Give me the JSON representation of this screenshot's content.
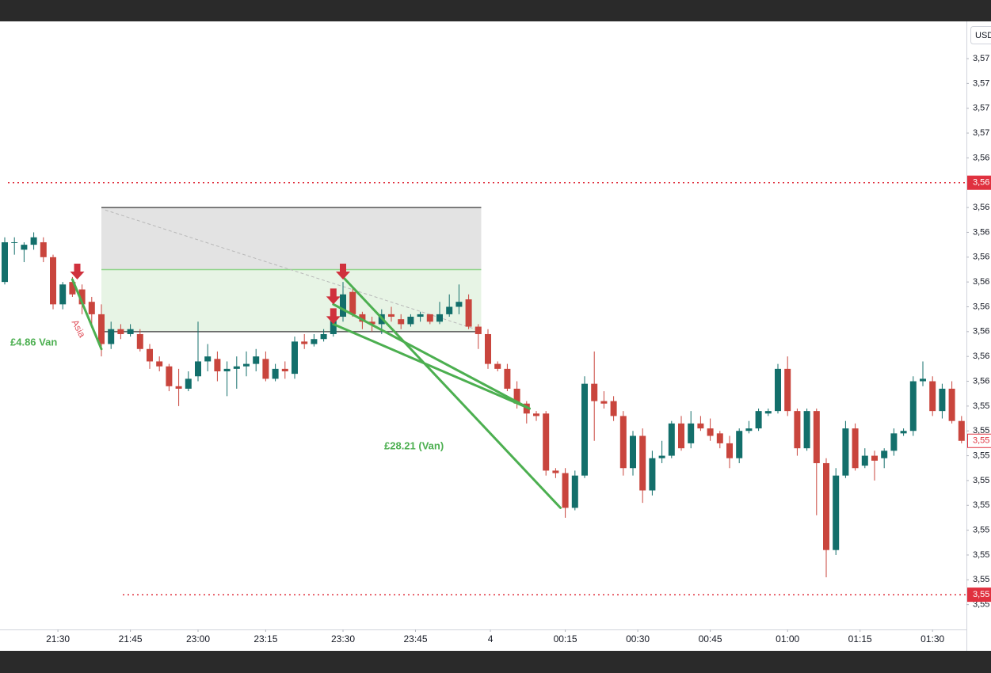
{
  "chart_data": {
    "type": "candlestick",
    "currency": "USD",
    "colors": {
      "up": "#136f6b",
      "down": "#c9453d",
      "trade": "#4caf50",
      "arrow": "#d0313d",
      "level": "#e0313f"
    },
    "ylim": [
      3.55,
      3.5745
    ],
    "yticks": [
      {
        "value": 3.573,
        "label": "3,57"
      },
      {
        "value": 3.572,
        "label": "3,57"
      },
      {
        "value": 3.571,
        "label": "3,57"
      },
      {
        "value": 3.57,
        "label": "3,57"
      },
      {
        "value": 3.569,
        "label": "3,56"
      },
      {
        "value": 3.567,
        "label": "3,56"
      },
      {
        "value": 3.566,
        "label": "3,56"
      },
      {
        "value": 3.565,
        "label": "3,56"
      },
      {
        "value": 3.564,
        "label": "3,56"
      },
      {
        "value": 3.563,
        "label": "3,56"
      },
      {
        "value": 3.562,
        "label": "3,56"
      },
      {
        "value": 3.561,
        "label": "3,56"
      },
      {
        "value": 3.56,
        "label": "3,56"
      },
      {
        "value": 3.559,
        "label": "3,55"
      },
      {
        "value": 3.558,
        "label": "3,55"
      },
      {
        "value": 3.557,
        "label": "3,55"
      },
      {
        "value": 3.556,
        "label": "3,55"
      },
      {
        "value": 3.555,
        "label": "3,55"
      },
      {
        "value": 3.554,
        "label": "3,55"
      },
      {
        "value": 3.553,
        "label": "3,55"
      },
      {
        "value": 3.552,
        "label": "3,55"
      },
      {
        "value": 3.551,
        "label": "3,55"
      }
    ],
    "xticks": [
      {
        "value": 5.5,
        "label": "21:30"
      },
      {
        "value": 13,
        "label": "21:45"
      },
      {
        "value": 20,
        "label": "23:00"
      },
      {
        "value": 27,
        "label": "23:15"
      },
      {
        "value": 35,
        "label": "23:30"
      },
      {
        "value": 42.5,
        "label": "23:45"
      },
      {
        "value": 50.25,
        "label": "4"
      },
      {
        "value": 58,
        "label": "00:15"
      },
      {
        "value": 65.5,
        "label": "00:30"
      },
      {
        "value": 73,
        "label": "00:45"
      },
      {
        "value": 81,
        "label": "01:00"
      },
      {
        "value": 88.5,
        "label": "01:15"
      },
      {
        "value": 96,
        "label": "01:30"
      }
    ],
    "candles": [
      [
        3.564,
        3.5658,
        3.5639,
        3.5656
      ],
      [
        3.5656,
        3.5658,
        3.5651,
        3.5656
      ],
      [
        3.5653,
        3.5656,
        3.5648,
        3.5655
      ],
      [
        3.5655,
        3.566,
        3.5653,
        3.5658
      ],
      [
        3.5656,
        3.5658,
        3.5648,
        3.565
      ],
      [
        3.565,
        3.5651,
        3.5629,
        3.5631
      ],
      [
        3.5631,
        3.564,
        3.5629,
        3.5639
      ],
      [
        3.564,
        3.5642,
        3.5634,
        3.5635
      ],
      [
        3.5637,
        3.5639,
        3.5627,
        3.5631
      ],
      [
        3.5632,
        3.5634,
        3.5623,
        3.5627
      ],
      [
        3.5627,
        3.5631,
        3.561,
        3.5615
      ],
      [
        3.5615,
        3.5624,
        3.5613,
        3.5621
      ],
      [
        3.5621,
        3.5623,
        3.5617,
        3.5619
      ],
      [
        3.5619,
        3.5623,
        3.5618,
        3.5621
      ],
      [
        3.5619,
        3.5621,
        3.5612,
        3.5613
      ],
      [
        3.5613,
        3.5615,
        3.5605,
        3.5608
      ],
      [
        3.5608,
        3.561,
        3.5604,
        3.5606
      ],
      [
        3.5606,
        3.5607,
        3.5596,
        3.5598
      ],
      [
        3.5598,
        3.5605,
        3.559,
        3.5597
      ],
      [
        3.5597,
        3.5604,
        3.5596,
        3.5601
      ],
      [
        3.5602,
        3.5624,
        3.56,
        3.5608
      ],
      [
        3.5608,
        3.5615,
        3.5604,
        3.561
      ],
      [
        3.5609,
        3.5612,
        3.56,
        3.5604
      ],
      [
        3.5604,
        3.5608,
        3.5594,
        3.5605
      ],
      [
        3.5605,
        3.561,
        3.5597,
        3.5606
      ],
      [
        3.5606,
        3.5612,
        3.5602,
        3.5607
      ],
      [
        3.5607,
        3.5613,
        3.5604,
        3.561
      ],
      [
        3.5609,
        3.5612,
        3.56,
        3.5601
      ],
      [
        3.5601,
        3.5607,
        3.56,
        3.5605
      ],
      [
        3.5605,
        3.5608,
        3.5601,
        3.5604
      ],
      [
        3.5603,
        3.5618,
        3.5601,
        3.5616
      ],
      [
        3.5616,
        3.5619,
        3.5613,
        3.5615
      ],
      [
        3.5615,
        3.5619,
        3.5614,
        3.5617
      ],
      [
        3.5617,
        3.5621,
        3.5616,
        3.5619
      ],
      [
        3.5619,
        3.5629,
        3.5618,
        3.5626
      ],
      [
        3.5626,
        3.564,
        3.5624,
        3.5635
      ],
      [
        3.5636,
        3.5638,
        3.5626,
        3.5627
      ],
      [
        3.5627,
        3.5628,
        3.5621,
        3.5624
      ],
      [
        3.5624,
        3.5626,
        3.562,
        3.5623
      ],
      [
        3.5623,
        3.5629,
        3.5619,
        3.5627
      ],
      [
        3.5627,
        3.563,
        3.5624,
        3.5626
      ],
      [
        3.5625,
        3.5627,
        3.5621,
        3.5623
      ],
      [
        3.5623,
        3.5627,
        3.5622,
        3.5626
      ],
      [
        3.5626,
        3.5628,
        3.5624,
        3.5627
      ],
      [
        3.5627,
        3.5627,
        3.5623,
        3.5624
      ],
      [
        3.5624,
        3.5632,
        3.5623,
        3.5627
      ],
      [
        3.5627,
        3.5635,
        3.5626,
        3.563
      ],
      [
        3.563,
        3.5639,
        3.5627,
        3.5632
      ],
      [
        3.5633,
        3.5635,
        3.5621,
        3.5622
      ],
      [
        3.5622,
        3.5623,
        3.5613,
        3.5619
      ],
      [
        3.5619,
        3.5621,
        3.5605,
        3.5607
      ],
      [
        3.5607,
        3.5608,
        3.5604,
        3.5605
      ],
      [
        3.5605,
        3.5607,
        3.5596,
        3.5597
      ],
      [
        3.5597,
        3.56,
        3.5589,
        3.5591
      ],
      [
        3.5591,
        3.5592,
        3.5583,
        3.5587
      ],
      [
        3.5587,
        3.5588,
        3.5584,
        3.5586
      ],
      [
        3.5587,
        3.5588,
        3.5562,
        3.5564
      ],
      [
        3.5564,
        3.5565,
        3.5561,
        3.5563
      ],
      [
        3.5563,
        3.5565,
        3.5545,
        3.5549
      ],
      [
        3.5549,
        3.5564,
        3.5548,
        3.5562
      ],
      [
        3.5562,
        3.5602,
        3.5561,
        3.5599
      ],
      [
        3.5599,
        3.5612,
        3.5576,
        3.5592
      ],
      [
        3.5592,
        3.5596,
        3.5589,
        3.5591
      ],
      [
        3.5592,
        3.5594,
        3.5584,
        3.5586
      ],
      [
        3.5586,
        3.5588,
        3.5562,
        3.5565
      ],
      [
        3.5565,
        3.558,
        3.5562,
        3.5578
      ],
      [
        3.5578,
        3.5581,
        3.5551,
        3.5556
      ],
      [
        3.5556,
        3.5572,
        3.5554,
        3.5569
      ],
      [
        3.5569,
        3.5576,
        3.5567,
        3.557
      ],
      [
        3.557,
        3.5584,
        3.5569,
        3.5583
      ],
      [
        3.5583,
        3.5586,
        3.5572,
        3.5573
      ],
      [
        3.5575,
        3.5588,
        3.5573,
        3.5583
      ],
      [
        3.5583,
        3.5586,
        3.558,
        3.5581
      ],
      [
        3.5581,
        3.5585,
        3.5576,
        3.5578
      ],
      [
        3.5579,
        3.558,
        3.5573,
        3.5575
      ],
      [
        3.5575,
        3.5578,
        3.5565,
        3.5569
      ],
      [
        3.5569,
        3.5581,
        3.5567,
        3.558
      ],
      [
        3.558,
        3.5584,
        3.5579,
        3.5581
      ],
      [
        3.5581,
        3.5589,
        3.558,
        3.5588
      ],
      [
        3.5587,
        3.5589,
        3.5586,
        3.5588
      ],
      [
        3.5588,
        3.5607,
        3.5587,
        3.5605
      ],
      [
        3.5605,
        3.561,
        3.5586,
        3.5588
      ],
      [
        3.5588,
        3.5589,
        3.557,
        3.5573
      ],
      [
        3.5573,
        3.5589,
        3.5572,
        3.5588
      ],
      [
        3.5588,
        3.5589,
        3.5546,
        3.5567
      ],
      [
        3.5567,
        3.5569,
        3.5521,
        3.5532
      ],
      [
        3.5532,
        3.5565,
        3.553,
        3.5562
      ],
      [
        3.5562,
        3.5584,
        3.5561,
        3.5581
      ],
      [
        3.5581,
        3.5583,
        3.5564,
        3.5565
      ],
      [
        3.5566,
        3.5573,
        3.5565,
        3.557
      ],
      [
        3.557,
        3.5572,
        3.556,
        3.5568
      ],
      [
        3.5569,
        3.5573,
        3.5565,
        3.5572
      ],
      [
        3.5572,
        3.5581,
        3.557,
        3.5579
      ],
      [
        3.5579,
        3.5581,
        3.5578,
        3.558
      ],
      [
        3.558,
        3.5602,
        3.5578,
        3.56
      ],
      [
        3.56,
        3.5608,
        3.5598,
        3.5601
      ],
      [
        3.56,
        3.5602,
        3.5586,
        3.5588
      ],
      [
        3.5588,
        3.5599,
        3.5585,
        3.5597
      ],
      [
        3.5597,
        3.56,
        3.5583,
        3.5584
      ],
      [
        3.5584,
        3.5586,
        3.5575,
        3.5576
      ]
    ],
    "levels": [
      {
        "value": 3.568,
        "label": "3,56"
      },
      {
        "value": 3.5514,
        "label": "3,55"
      }
    ],
    "last_price": {
      "value": 3.5576,
      "label": "3,55"
    },
    "zone": {
      "x": [
        10,
        49.3
      ],
      "top": 3.567,
      "mid": 3.5645,
      "bottom": 3.562
    },
    "trend_line": {
      "x": [
        10.4,
        48.7
      ],
      "y": [
        3.5669,
        3.5621
      ]
    },
    "trades": [
      {
        "x": [
          7,
          10
        ],
        "y": [
          3.5641,
          3.5613
        ]
      },
      {
        "x": [
          35,
          57.5
        ],
        "y": [
          3.5642,
          3.5549
        ]
      },
      {
        "x": [
          34,
          54.3
        ],
        "y": [
          3.5631,
          3.5589
        ]
      },
      {
        "x": [
          34,
          54.3
        ],
        "y": [
          3.5623,
          3.5589
        ]
      }
    ],
    "arrows": [
      {
        "x": 7.5,
        "y": 3.5641
      },
      {
        "x": 35,
        "y": 3.5641
      },
      {
        "x": 34,
        "y": 3.5631
      },
      {
        "x": 34,
        "y": 3.5623
      }
    ],
    "annotations": {
      "trade_1": "£4.86 Van",
      "trade_2": "£28.21 (Van)",
      "session": "Asia"
    }
  }
}
